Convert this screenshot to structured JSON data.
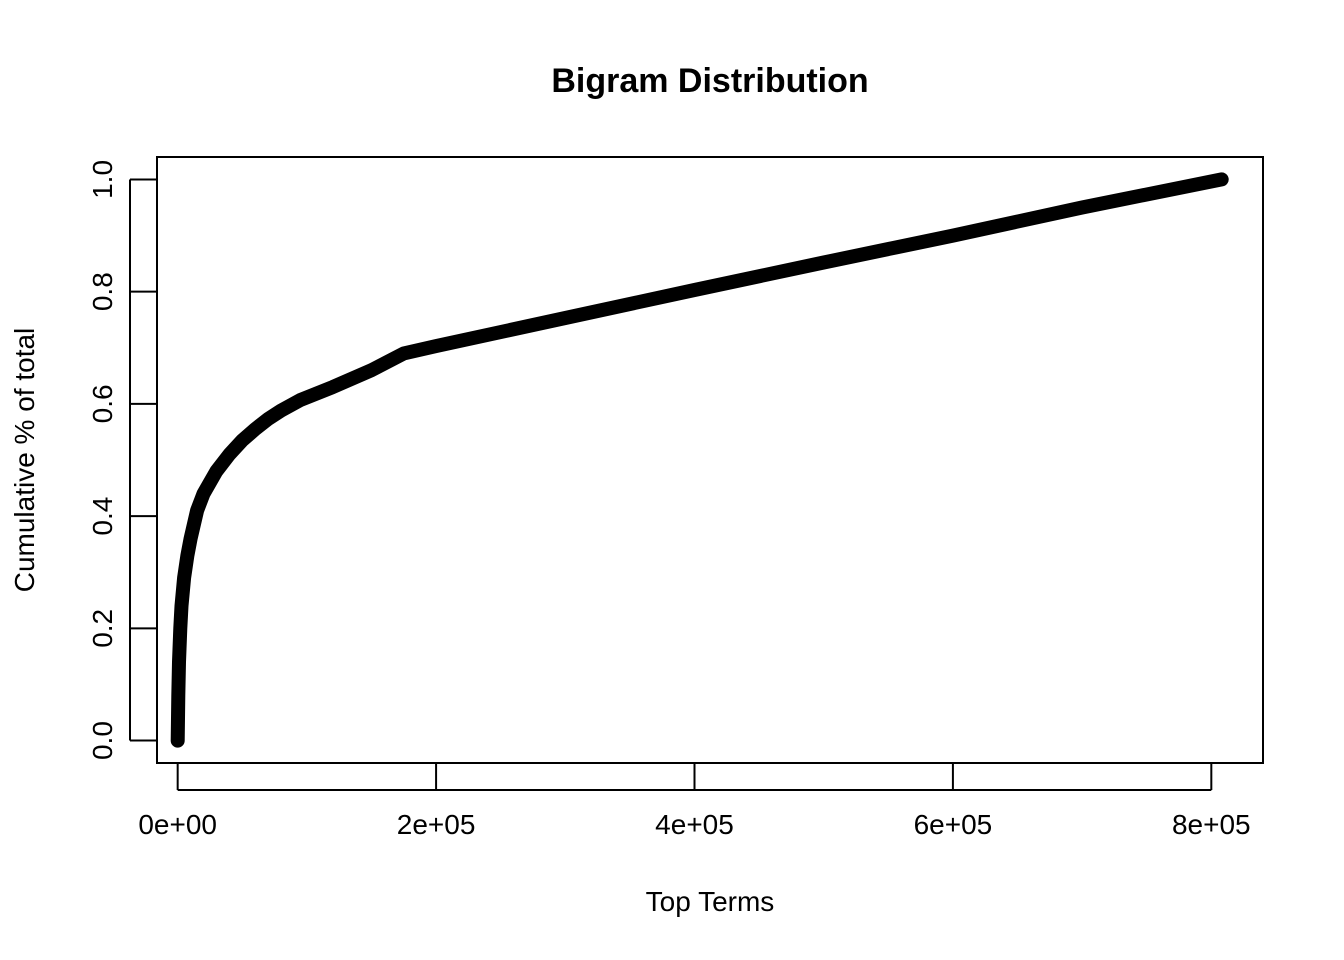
{
  "chart_data": {
    "type": "line",
    "title": "Bigram Distribution",
    "xlabel": "Top Terms",
    "ylabel": "Cumulative % of total",
    "xlim": [
      -16000,
      840000
    ],
    "ylim": [
      -0.04,
      1.04
    ],
    "x_ticks": [
      0,
      200000,
      400000,
      600000,
      800000
    ],
    "x_tick_labels": [
      "0e+00",
      "2e+05",
      "4e+05",
      "6e+05",
      "8e+05"
    ],
    "y_ticks": [
      0.0,
      0.2,
      0.4,
      0.6,
      0.8,
      1.0
    ],
    "y_tick_labels": [
      "0.0",
      "0.2",
      "0.4",
      "0.6",
      "0.8",
      "1.0"
    ],
    "grid": false,
    "line_color": "#000000",
    "series": [
      {
        "x": [
          0,
          500,
          1000,
          2000,
          3000,
          5000,
          7500,
          10000,
          15000,
          20000,
          25000,
          30000,
          40000,
          50000,
          60000,
          70000,
          80000,
          95000,
          120000,
          150000,
          175000,
          200000,
          300000,
          400000,
          500000,
          600000,
          700000,
          808000
        ],
        "y": [
          0.0,
          0.08,
          0.14,
          0.2,
          0.24,
          0.29,
          0.33,
          0.36,
          0.41,
          0.44,
          0.46,
          0.48,
          0.51,
          0.535,
          0.555,
          0.573,
          0.588,
          0.607,
          0.63,
          0.66,
          0.69,
          0.703,
          0.753,
          0.803,
          0.852,
          0.9,
          0.95,
          1.0
        ]
      }
    ]
  }
}
